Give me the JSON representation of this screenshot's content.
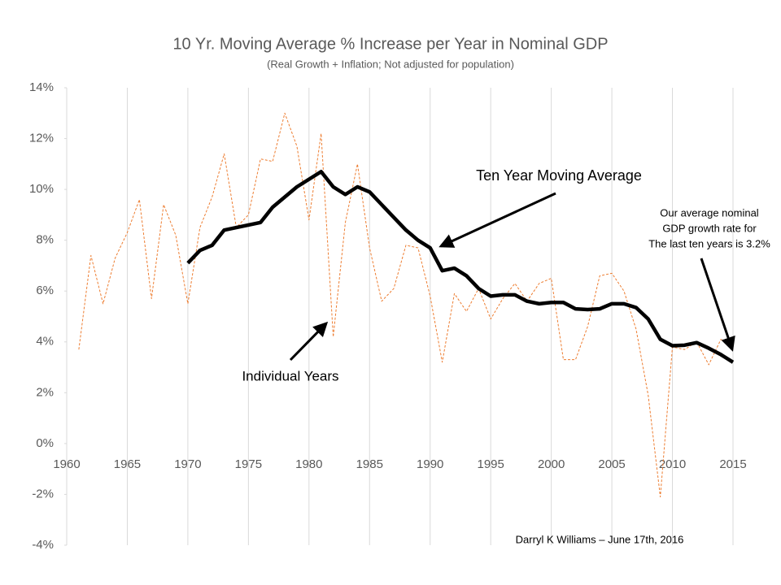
{
  "chart_data": {
    "type": "line",
    "title": "10 Yr. Moving Average % Increase per Year in Nominal GDP",
    "subtitle": "(Real Growth + Inflation; Not adjusted for population)",
    "x": [
      1961,
      1962,
      1963,
      1964,
      1965,
      1966,
      1967,
      1968,
      1969,
      1970,
      1971,
      1972,
      1973,
      1974,
      1975,
      1976,
      1977,
      1978,
      1979,
      1980,
      1981,
      1982,
      1983,
      1984,
      1985,
      1986,
      1987,
      1988,
      1989,
      1990,
      1991,
      1992,
      1993,
      1994,
      1995,
      1996,
      1997,
      1998,
      1999,
      2000,
      2001,
      2002,
      2003,
      2004,
      2005,
      2006,
      2007,
      2008,
      2009,
      2010,
      2011,
      2012,
      2013,
      2014,
      2015
    ],
    "series": [
      {
        "name": "Individual Years",
        "color": "#ed7d31",
        "values": [
          3.7,
          7.4,
          5.5,
          7.3,
          8.3,
          9.6,
          5.7,
          9.4,
          8.2,
          5.5,
          8.5,
          9.7,
          11.4,
          8.5,
          9.0,
          11.2,
          11.1,
          13.0,
          11.7,
          8.8,
          12.2,
          4.2,
          8.7,
          11.0,
          7.7,
          5.6,
          6.1,
          7.8,
          7.7,
          5.8,
          3.2,
          5.9,
          5.2,
          6.1,
          4.9,
          5.7,
          6.3,
          5.6,
          6.3,
          6.5,
          3.3,
          3.3,
          4.6,
          6.6,
          6.7,
          6.0,
          4.5,
          1.9,
          -2.1,
          3.8,
          3.7,
          4.0,
          3.1,
          4.1,
          3.7
        ]
      },
      {
        "name": "Ten Year Moving Average",
        "color": "#000000",
        "values": [
          null,
          null,
          null,
          null,
          null,
          null,
          null,
          null,
          null,
          7.1,
          7.6,
          7.8,
          8.4,
          8.5,
          8.6,
          8.7,
          9.3,
          9.7,
          10.1,
          10.4,
          10.7,
          10.1,
          9.8,
          10.1,
          9.9,
          9.4,
          8.9,
          8.4,
          8.0,
          7.7,
          6.8,
          6.9,
          6.6,
          6.1,
          5.8,
          5.85,
          5.85,
          5.6,
          5.5,
          5.55,
          5.55,
          5.3,
          5.27,
          5.3,
          5.5,
          5.5,
          5.35,
          4.9,
          4.1,
          3.85,
          3.87,
          3.97,
          3.75,
          3.5,
          3.2
        ]
      }
    ],
    "xlim": [
      1960,
      2015
    ],
    "xticks": [
      1960,
      1965,
      1970,
      1975,
      1980,
      1985,
      1990,
      1995,
      2000,
      2005,
      2010,
      2015
    ],
    "ylim": [
      -4,
      14
    ],
    "yticks": [
      {
        "value": -4,
        "label": "-4%"
      },
      {
        "value": -2,
        "label": "-2%"
      },
      {
        "value": 0,
        "label": "0%"
      },
      {
        "value": 2,
        "label": "2%"
      },
      {
        "value": 4,
        "label": "4%"
      },
      {
        "value": 6,
        "label": "6%"
      },
      {
        "value": 8,
        "label": "8%"
      },
      {
        "value": 10,
        "label": "10%"
      },
      {
        "value": 12,
        "label": "12%"
      },
      {
        "value": 14,
        "label": "14%"
      }
    ],
    "grid": "x",
    "annotations": {
      "moving_average": "Ten Year Moving Average",
      "individual": "Individual Years",
      "recent": [
        "Our average nominal",
        "GDP growth rate for",
        "The last ten years is 3.2%"
      ],
      "credit": "Darryl K Williams – June 17th, 2016"
    }
  }
}
